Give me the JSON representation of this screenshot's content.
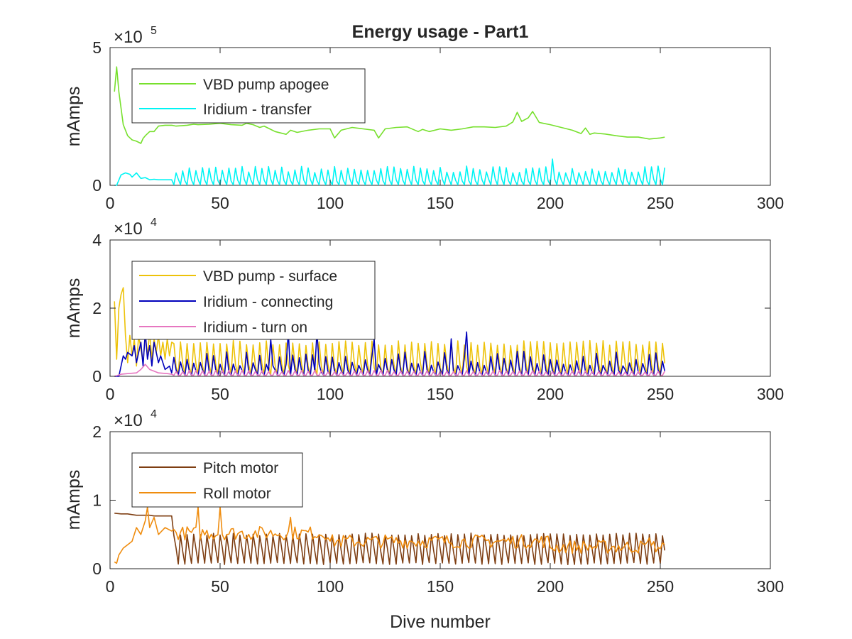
{
  "chart_data": [
    {
      "type": "line",
      "title": "Energy usage - Part1",
      "xlabel": "",
      "ylabel": "mAmps",
      "exponent_base": "×10",
      "exponent_power": "5",
      "xlim": [
        0,
        300
      ],
      "ylim": [
        0,
        500000
      ],
      "xticks": [
        "0",
        "50",
        "100",
        "150",
        "200",
        "250",
        "300"
      ],
      "yticks": [
        "0",
        "5"
      ],
      "ytick_values": [
        0,
        500000
      ],
      "grid": false,
      "legend_placement": "top-left",
      "series": [
        {
          "name": "VBD pump apogee",
          "color": "#77E02D",
          "x": [
            2,
            3,
            4,
            5,
            6,
            8,
            10,
            12,
            14,
            15,
            16,
            18,
            20,
            22,
            25,
            28,
            30,
            35,
            38,
            40,
            45,
            50,
            55,
            60,
            62,
            65,
            68,
            70,
            75,
            80,
            82,
            85,
            90,
            95,
            100,
            102,
            105,
            110,
            115,
            120,
            122,
            125,
            130,
            135,
            140,
            142,
            145,
            150,
            155,
            160,
            165,
            170,
            175,
            180,
            183,
            185,
            187,
            190,
            192,
            195,
            200,
            205,
            210,
            214,
            216,
            218,
            220,
            225,
            230,
            235,
            240,
            245,
            250,
            252
          ],
          "values": [
            340000,
            430000,
            340000,
            280000,
            220000,
            180000,
            165000,
            160000,
            152000,
            170000,
            180000,
            195000,
            195000,
            215000,
            218000,
            218000,
            215000,
            218000,
            222000,
            220000,
            222000,
            225000,
            220000,
            218000,
            225000,
            220000,
            210000,
            215000,
            195000,
            185000,
            200000,
            192000,
            200000,
            205000,
            205000,
            172000,
            200000,
            210000,
            205000,
            200000,
            172000,
            205000,
            210000,
            212000,
            195000,
            203000,
            195000,
            205000,
            200000,
            205000,
            212000,
            212000,
            210000,
            215000,
            230000,
            265000,
            232000,
            245000,
            268000,
            228000,
            220000,
            210000,
            200000,
            188000,
            208000,
            185000,
            190000,
            186000,
            180000,
            175000,
            175000,
            168000,
            172000,
            175000
          ]
        },
        {
          "name": "Iridium - transfer",
          "color": "#00F4F4",
          "note": "",
          "x": [
            2,
            3,
            5,
            7,
            9,
            10,
            12,
            14,
            16,
            18,
            20,
            22,
            25,
            28
          ],
          "values": [
            0,
            0,
            38000,
            45000,
            40000,
            30000,
            45000,
            25000,
            28000,
            20000,
            22000,
            20000,
            20000,
            20000
          ]
        }
      ]
    },
    {
      "type": "line",
      "title": "",
      "xlabel": "",
      "ylabel": "mAmps",
      "exponent_base": "×10",
      "exponent_power": "4",
      "xlim": [
        0,
        300
      ],
      "ylim": [
        0,
        40000
      ],
      "xticks": [
        "0",
        "50",
        "100",
        "150",
        "200",
        "250",
        "300"
      ],
      "yticks": [
        "0",
        "2",
        "4"
      ],
      "ytick_values": [
        0,
        20000,
        40000
      ],
      "grid": false,
      "legend_placement": "top-left",
      "series": [
        {
          "name": "VBD pump - surface",
          "color": "#EDC20A",
          "x": [
            2,
            3,
            4,
            5,
            6,
            7,
            8,
            9,
            10,
            11,
            12,
            13,
            14,
            15,
            16,
            17,
            18,
            19,
            20,
            21,
            22,
            23,
            24,
            25,
            26,
            27,
            28
          ],
          "values": [
            22000,
            5000,
            20000,
            24000,
            26000,
            12000,
            4000,
            12000,
            6000,
            11000,
            3000,
            12000,
            8000,
            4000,
            12000,
            6000,
            13000,
            5000,
            11000,
            7000,
            12000,
            6000,
            10000,
            5000,
            11000,
            6000,
            10000
          ]
        },
        {
          "name": "Iridium - connecting",
          "color": "#0000BB",
          "x": [
            2,
            4,
            6,
            7,
            8,
            10,
            11,
            12,
            14,
            15,
            16,
            17,
            18,
            19,
            20,
            22,
            23,
            25,
            27,
            28
          ],
          "values": [
            0,
            0,
            6000,
            5000,
            7000,
            6000,
            9000,
            4000,
            10000,
            3000,
            13000,
            5000,
            9000,
            3000,
            10000,
            4000,
            6000,
            2000,
            3000,
            1000
          ]
        },
        {
          "name": "Iridium - turn on",
          "color": "#E676C0",
          "x": [
            2,
            5,
            8,
            10,
            12,
            14,
            16,
            18,
            20,
            22,
            24,
            26,
            28
          ],
          "values": [
            0,
            600,
            800,
            900,
            1000,
            2000,
            3500,
            2000,
            1500,
            1000,
            900,
            800,
            600
          ]
        }
      ]
    },
    {
      "type": "line",
      "title": "",
      "xlabel": "Dive number",
      "ylabel": "mAmps",
      "exponent_base": "×10",
      "exponent_power": "4",
      "xlim": [
        0,
        300
      ],
      "ylim": [
        0,
        20000
      ],
      "xticks": [
        "0",
        "50",
        "100",
        "150",
        "200",
        "250",
        "300"
      ],
      "yticks": [
        "0",
        "1",
        "2"
      ],
      "ytick_values": [
        0,
        10000,
        20000
      ],
      "grid": false,
      "legend_placement": "top-left",
      "series": [
        {
          "name": "Pitch motor",
          "color": "#7E3E12",
          "x": [
            2,
            5,
            8,
            10,
            12,
            15,
            18,
            20,
            25,
            28
          ],
          "values": [
            8100,
            8000,
            8000,
            7900,
            7800,
            7800,
            7800,
            7700,
            7700,
            7700
          ]
        },
        {
          "name": "Roll motor",
          "color": "#EF8C0E",
          "x": [
            2,
            3,
            4,
            6,
            8,
            10,
            12,
            14,
            16,
            17,
            18,
            20,
            22,
            25,
            28
          ],
          "values": [
            1000,
            800,
            2000,
            3000,
            3500,
            4000,
            6000,
            5000,
            7000,
            9000,
            6000,
            7500,
            5000,
            6000,
            5500
          ]
        }
      ]
    }
  ]
}
